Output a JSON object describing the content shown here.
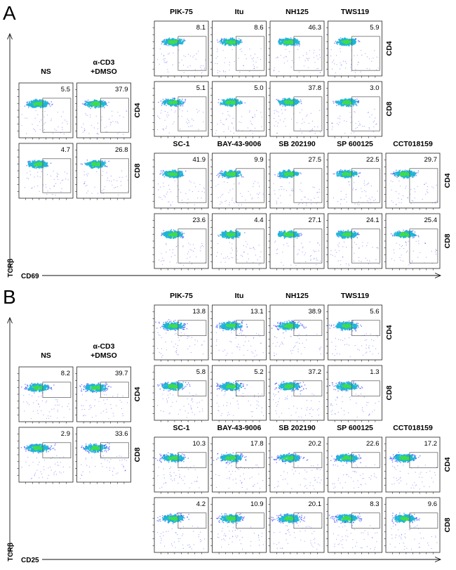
{
  "panels": [
    {
      "letter": "A",
      "x_axis": "CD69",
      "y_axis": "TCRβ",
      "gate_type": "tall",
      "controls": {
        "headers": [
          "NS",
          "α-CD3\n+DMSO"
        ],
        "rows": [
          {
            "label": "CD4",
            "values": [
              "5.5",
              "37.9"
            ]
          },
          {
            "label": "CD8",
            "values": [
              "4.7",
              "26.8"
            ]
          }
        ]
      },
      "top_group": {
        "headers": [
          "PIK-75",
          "Itu",
          "NH125",
          "TWS119"
        ],
        "rows": [
          {
            "label": "CD4",
            "values": [
              "8.1",
              "8.6",
              "46.3",
              "5.9"
            ]
          },
          {
            "label": "CD8",
            "values": [
              "5.1",
              "5.0",
              "37.8",
              "3.0"
            ]
          }
        ]
      },
      "bottom_group": {
        "headers": [
          "SC-1",
          "BAY-43-9006",
          "SB 202190",
          "SP 600125",
          "CCT018159"
        ],
        "rows": [
          {
            "label": "CD4",
            "values": [
              "41.9",
              "9.9",
              "27.5",
              "22.5",
              "29.7"
            ]
          },
          {
            "label": "CD8",
            "values": [
              "23.6",
              "4.4",
              "27.1",
              "24.1",
              "25.4"
            ]
          }
        ]
      }
    },
    {
      "letter": "B",
      "x_axis": "CD25",
      "y_axis": "TCRβ",
      "gate_type": "short",
      "controls": {
        "headers": [
          "NS",
          "α-CD3\n+DMSO"
        ],
        "rows": [
          {
            "label": "CD4",
            "values": [
              "8.2",
              "39.7"
            ]
          },
          {
            "label": "CD8",
            "values": [
              "2.9",
              "33.6"
            ]
          }
        ]
      },
      "top_group": {
        "headers": [
          "PIK-75",
          "Itu",
          "NH125",
          "TWS119"
        ],
        "rows": [
          {
            "label": "CD4",
            "values": [
              "13.8",
              "13.1",
              "38.9",
              "5.6"
            ]
          },
          {
            "label": "CD8",
            "values": [
              "5.8",
              "5.2",
              "37.2",
              "1.3"
            ]
          }
        ]
      },
      "bottom_group": {
        "headers": [
          "SC-1",
          "BAY-43-9006",
          "SB 202190",
          "SP 600125",
          "CCT018159"
        ],
        "rows": [
          {
            "label": "CD4",
            "values": [
              "10.3",
              "17.8",
              "20.2",
              "22.6",
              "17.2"
            ]
          },
          {
            "label": "CD8",
            "values": [
              "4.2",
              "10.9",
              "20.1",
              "8.3",
              "9.6"
            ]
          }
        ]
      }
    }
  ],
  "colors": {
    "density_low": "#2a3cff",
    "density_mid": "#1fb5d6",
    "density_high": "#3fdc4a",
    "frame": "#222222"
  }
}
